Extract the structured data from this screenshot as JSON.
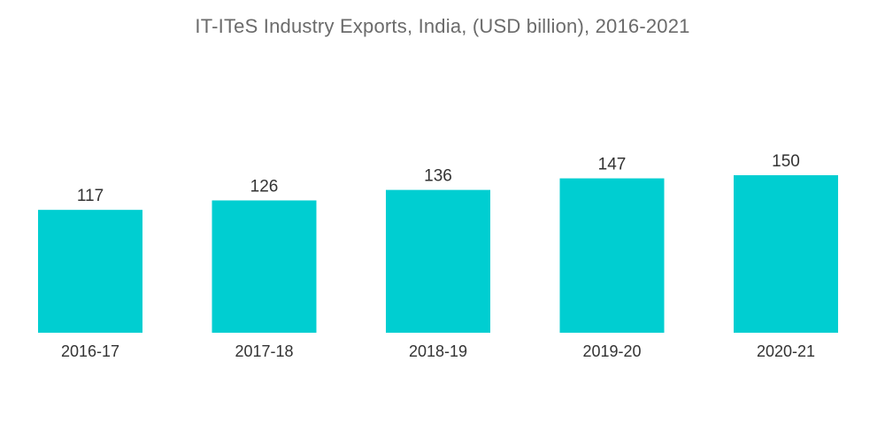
{
  "chart_data": {
    "type": "bar",
    "title": "IT-ITeS Industry Exports, India, (USD billion), 2016-2021",
    "xlabel": "",
    "ylabel": "",
    "categories": [
      "2016-17",
      "2017-18",
      "2018-19",
      "2019-20",
      "2020-21"
    ],
    "values": [
      117,
      126,
      136,
      147,
      150
    ],
    "ylim": [
      0,
      150
    ],
    "grid": false,
    "legend": "none",
    "bar_color": "#00CED1",
    "data_labels": true
  }
}
